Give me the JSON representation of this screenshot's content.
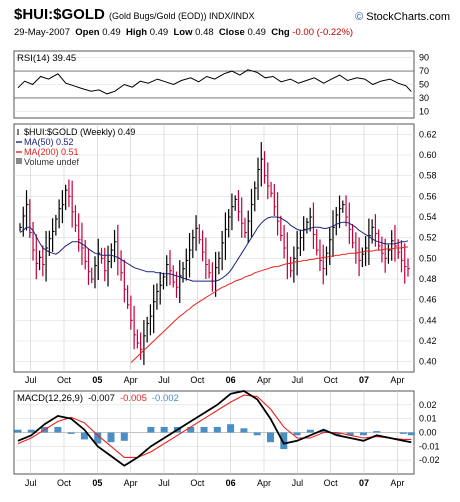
{
  "header": {
    "symbol": "$HUI:$GOLD",
    "description": "(Gold Bugs/Gold (EOD))  INDX/INDX",
    "brand_icon": "copyright",
    "brand": "StockCharts.com",
    "date": "29-May-2007",
    "open_label": "Open",
    "open": "0.49",
    "high_label": "High",
    "high": "0.49",
    "low_label": "Low",
    "low": "0.48",
    "close_label": "Close",
    "close": "0.49",
    "chg_label": "Chg",
    "chg": "-0.00 (-0.22%)"
  },
  "colors": {
    "bar_up": "#000000",
    "bar_down": "#c2003a",
    "ma50": "#1a237e",
    "ma200": "#e8231f",
    "macd": "#000000",
    "signal": "#e8231f",
    "histogram": "#4a8ec4",
    "rsi": "#000000"
  },
  "chart_data": [
    {
      "type": "line",
      "panel": "rsi",
      "label": "RSI(14) 39.45",
      "ylim": [
        0,
        100
      ],
      "ticks": [
        10,
        30,
        50,
        70,
        90
      ],
      "x": [
        2004.45,
        2004.5,
        2004.56,
        2004.62,
        2004.68,
        2004.75,
        2004.81,
        2004.87,
        2004.93,
        2005.0,
        2005.06,
        2005.12,
        2005.18,
        2005.25,
        2005.31,
        2005.37,
        2005.43,
        2005.5,
        2005.56,
        2005.62,
        2005.68,
        2005.75,
        2005.81,
        2005.87,
        2005.93,
        2006.0,
        2006.06,
        2006.12,
        2006.18,
        2006.25,
        2006.31,
        2006.37,
        2006.43,
        2006.5,
        2006.56,
        2006.62,
        2006.68,
        2006.75,
        2006.81,
        2006.87,
        2006.93,
        2007.0,
        2007.06,
        2007.12,
        2007.18,
        2007.25,
        2007.31,
        2007.37,
        2007.41
      ],
      "values": [
        45,
        55,
        50,
        62,
        58,
        66,
        52,
        48,
        44,
        40,
        42,
        36,
        40,
        50,
        46,
        55,
        52,
        58,
        54,
        50,
        56,
        60,
        54,
        62,
        58,
        66,
        70,
        64,
        72,
        68,
        60,
        62,
        54,
        58,
        52,
        56,
        60,
        52,
        58,
        64,
        56,
        60,
        58,
        50,
        55,
        58,
        52,
        48,
        39.45
      ]
    },
    {
      "type": "bar",
      "panel": "price",
      "legend": [
        "$HUI:$GOLD (Weekly) 0.49",
        "MA(50) 0.52",
        "MA(200) 0.51",
        "Volume undef"
      ],
      "ylim": [
        0.39,
        0.63
      ],
      "yticks": [
        0.4,
        0.42,
        0.44,
        0.46,
        0.48,
        0.5,
        0.52,
        0.54,
        0.56,
        0.58,
        0.6,
        0.62
      ],
      "xticks": [
        "Jul",
        "Oct",
        "05",
        "Apr",
        "Jul",
        "Oct",
        "06",
        "Apr",
        "Jul",
        "Oct",
        "07",
        "Apr"
      ],
      "close": [
        0.53,
        0.541,
        0.552,
        0.525,
        0.508,
        0.495,
        0.501,
        0.494,
        0.51,
        0.519,
        0.526,
        0.538,
        0.548,
        0.552,
        0.566,
        0.56,
        0.545,
        0.532,
        0.518,
        0.51,
        0.497,
        0.487,
        0.48,
        0.493,
        0.505,
        0.5,
        0.488,
        0.497,
        0.508,
        0.516,
        0.5,
        0.486,
        0.47,
        0.455,
        0.44,
        0.426,
        0.418,
        0.412,
        0.425,
        0.437,
        0.444,
        0.458,
        0.468,
        0.474,
        0.482,
        0.494,
        0.488,
        0.477,
        0.472,
        0.483,
        0.49,
        0.498,
        0.508,
        0.52,
        0.529,
        0.518,
        0.506,
        0.494,
        0.486,
        0.478,
        0.491,
        0.5,
        0.515,
        0.528,
        0.54,
        0.55,
        0.557,
        0.545,
        0.534,
        0.525,
        0.536,
        0.552,
        0.568,
        0.586,
        0.596,
        0.58,
        0.57,
        0.563,
        0.55,
        0.536,
        0.522,
        0.51,
        0.495,
        0.488,
        0.5,
        0.51,
        0.52,
        0.528,
        0.535,
        0.54,
        0.523,
        0.508,
        0.498,
        0.49,
        0.505,
        0.518,
        0.53,
        0.542,
        0.548,
        0.552,
        0.54,
        0.528,
        0.515,
        0.505,
        0.498,
        0.504,
        0.51,
        0.522,
        0.53,
        0.524,
        0.512,
        0.505,
        0.5,
        0.508,
        0.517,
        0.512,
        0.506,
        0.498,
        0.492,
        0.49
      ],
      "ma50": [
        0.525,
        0.527,
        0.53,
        0.53,
        0.527,
        0.521,
        0.515,
        0.51,
        0.508,
        0.506,
        0.505,
        0.504,
        0.506,
        0.509,
        0.512,
        0.514,
        0.516,
        0.516,
        0.516,
        0.514,
        0.512,
        0.509,
        0.507,
        0.505,
        0.504,
        0.503,
        0.503,
        0.503,
        0.503,
        0.502,
        0.501,
        0.499,
        0.497,
        0.495,
        0.493,
        0.491,
        0.49,
        0.489,
        0.488,
        0.487,
        0.487,
        0.487,
        0.486,
        0.486,
        0.485,
        0.485,
        0.485,
        0.484,
        0.483,
        0.482,
        0.481,
        0.48,
        0.479,
        0.478,
        0.478,
        0.478,
        0.478,
        0.478,
        0.478,
        0.478,
        0.478,
        0.479,
        0.481,
        0.483,
        0.486,
        0.49,
        0.495,
        0.5,
        0.505,
        0.51,
        0.515,
        0.52,
        0.525,
        0.53,
        0.534,
        0.537,
        0.539,
        0.54,
        0.54,
        0.54,
        0.539,
        0.537,
        0.535,
        0.532,
        0.53,
        0.528,
        0.527,
        0.527,
        0.528,
        0.529,
        0.53,
        0.53,
        0.53,
        0.529,
        0.529,
        0.53,
        0.531,
        0.533,
        0.534,
        0.535,
        0.535,
        0.534,
        0.532,
        0.53,
        0.527,
        0.525,
        0.523,
        0.521,
        0.519,
        0.517,
        0.516,
        0.515,
        0.514,
        0.514,
        0.514,
        0.514,
        0.515,
        0.516,
        0.516,
        0.517
      ],
      "ma200": [
        null,
        null,
        null,
        null,
        null,
        null,
        null,
        null,
        null,
        null,
        null,
        null,
        null,
        null,
        null,
        null,
        null,
        null,
        null,
        null,
        null,
        null,
        null,
        null,
        null,
        null,
        null,
        null,
        null,
        null,
        null,
        null,
        null,
        null,
        0.399,
        0.402,
        0.405,
        0.408,
        0.411,
        0.414,
        0.417,
        0.42,
        0.423,
        0.426,
        0.429,
        0.432,
        0.435,
        0.438,
        0.441,
        0.444,
        0.446,
        0.449,
        0.451,
        0.454,
        0.456,
        0.458,
        0.46,
        0.462,
        0.464,
        0.466,
        0.468,
        0.47,
        0.472,
        0.473,
        0.475,
        0.476,
        0.478,
        0.479,
        0.48,
        0.482,
        0.483,
        0.484,
        0.486,
        0.487,
        0.488,
        0.489,
        0.49,
        0.491,
        0.492,
        0.492,
        0.493,
        0.494,
        0.495,
        0.495,
        0.496,
        0.497,
        0.497,
        0.498,
        0.498,
        0.499,
        0.499,
        0.5,
        0.5,
        0.501,
        0.501,
        0.502,
        0.502,
        0.503,
        0.503,
        0.504,
        0.504,
        0.505,
        0.505,
        0.505,
        0.506,
        0.506,
        0.507,
        0.507,
        0.507,
        0.508,
        0.508,
        0.508,
        0.509,
        0.509,
        0.509,
        0.51,
        0.51,
        0.51,
        0.511,
        0.511
      ]
    },
    {
      "type": "line",
      "panel": "macd",
      "legend": [
        "MACD(12,26,9)",
        "-0.007",
        "-0.005",
        "-0.002"
      ],
      "ylim": [
        -0.03,
        0.03
      ],
      "yticks": [
        -0.02,
        -0.01,
        0.0,
        0.01,
        0.02
      ],
      "xticks": [
        "Jul",
        "Oct",
        "05",
        "Apr",
        "Jul",
        "Oct",
        "06",
        "Apr",
        "Jul",
        "Oct",
        "07",
        "Apr"
      ],
      "x": [
        2004.45,
        2004.55,
        2004.65,
        2004.75,
        2004.85,
        2004.95,
        2005.05,
        2005.15,
        2005.25,
        2005.35,
        2005.45,
        2005.55,
        2005.65,
        2005.75,
        2005.85,
        2005.95,
        2006.05,
        2006.15,
        2006.25,
        2006.35,
        2006.45,
        2006.55,
        2006.65,
        2006.75,
        2006.85,
        2006.95,
        2007.05,
        2007.15,
        2007.25,
        2007.35,
        2007.41
      ],
      "macd": [
        -0.006,
        -0.002,
        0.006,
        0.012,
        0.01,
        0.002,
        -0.01,
        -0.017,
        -0.024,
        -0.018,
        -0.01,
        -0.004,
        0.002,
        0.008,
        0.014,
        0.02,
        0.028,
        0.03,
        0.024,
        0.01,
        -0.008,
        -0.006,
        -0.002,
        0.002,
        -0.002,
        -0.004,
        -0.006,
        -0.002,
        -0.004,
        -0.006,
        -0.007
      ],
      "signal": [
        -0.008,
        -0.004,
        0.002,
        0.008,
        0.011,
        0.007,
        -0.002,
        -0.01,
        -0.018,
        -0.018,
        -0.014,
        -0.008,
        -0.002,
        0.004,
        0.01,
        0.016,
        0.022,
        0.027,
        0.026,
        0.017,
        0.004,
        -0.004,
        -0.004,
        0.0,
        0.0,
        -0.002,
        -0.004,
        -0.003,
        -0.004,
        -0.005,
        -0.005
      ],
      "histogram": [
        0.002,
        0.002,
        0.004,
        0.004,
        -0.001,
        -0.005,
        -0.008,
        -0.007,
        -0.006,
        0.0,
        0.004,
        0.004,
        0.004,
        0.004,
        0.004,
        0.004,
        0.006,
        0.003,
        -0.002,
        -0.007,
        -0.012,
        -0.002,
        0.002,
        0.002,
        -0.002,
        -0.002,
        -0.002,
        0.001,
        0.0,
        -0.001,
        -0.002
      ]
    }
  ]
}
